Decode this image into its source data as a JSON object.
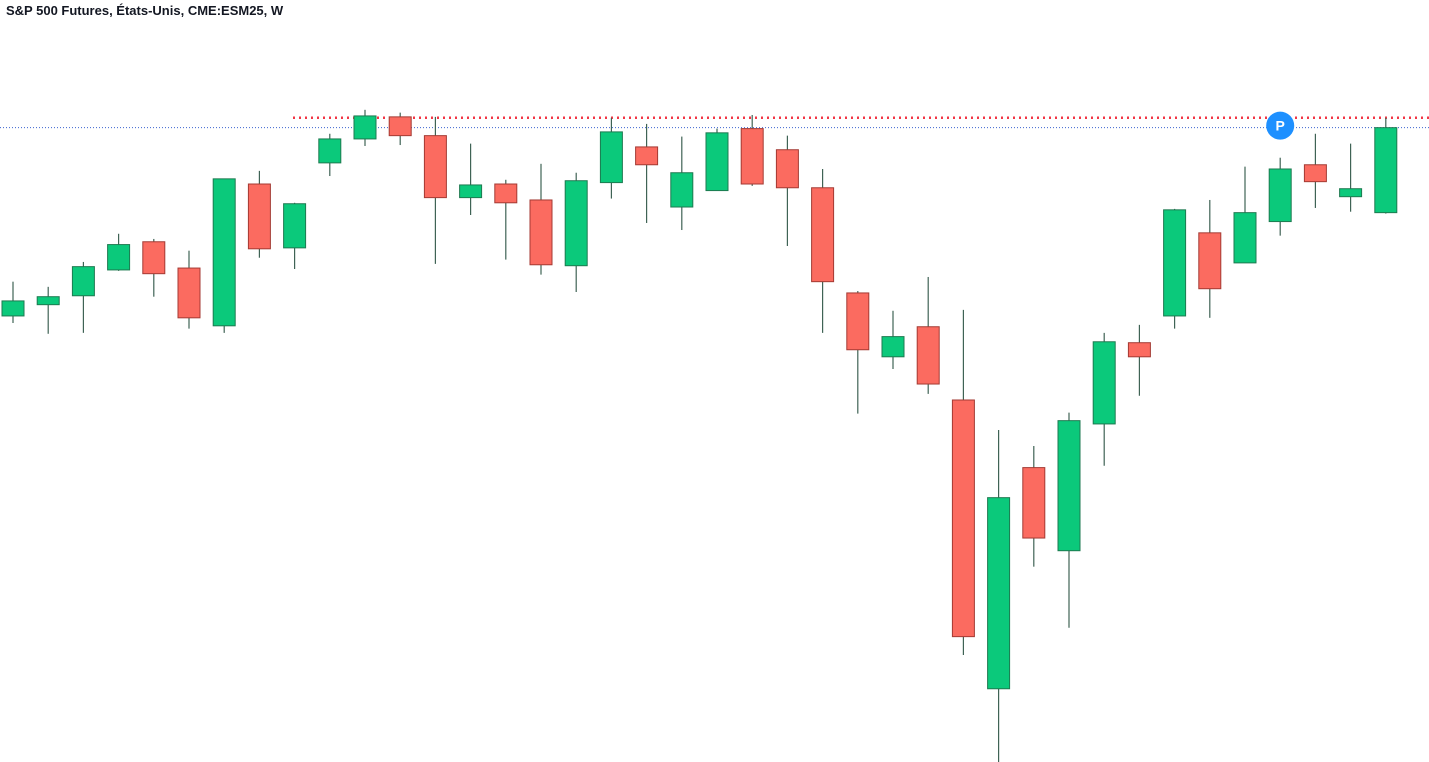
{
  "chart_data": {
    "type": "candlestick",
    "title": "S&P 500 Futures, États-Unis, CME:ESM25, W",
    "open": [
      5778,
      5802,
      5821,
      5876,
      5936,
      5880,
      5757,
      6059,
      5923,
      6104,
      6155,
      6202,
      6162,
      6030,
      6059,
      6025,
      5885,
      6062,
      6138,
      6010,
      6045,
      6177,
      6132,
      6051,
      5827,
      5691,
      5755,
      5599,
      4984,
      5455,
      5278,
      5548,
      5721,
      5778,
      5955,
      5891,
      5979,
      6100,
      6032,
      5998
    ],
    "high": [
      5851,
      5840,
      5893,
      5953,
      5942,
      5917,
      6070,
      6087,
      6019,
      6166,
      6217,
      6211,
      6202,
      6145,
      6068,
      6102,
      6083,
      6200,
      6187,
      6160,
      6177,
      6206,
      6162,
      6091,
      5831,
      5789,
      5861,
      5791,
      5535,
      5501,
      5572,
      5742,
      5759,
      6006,
      6025,
      6096,
      6115,
      6166,
      6145,
      6200
    ],
    "low": [
      5763,
      5740,
      5742,
      5874,
      5819,
      5751,
      5742,
      5902,
      5878,
      6076,
      6140,
      6142,
      5889,
      5993,
      5898,
      5866,
      5829,
      6028,
      5976,
      5961,
      6045,
      6055,
      5927,
      5742,
      5570,
      5665,
      5612,
      5056,
      4828,
      5244,
      5114,
      5459,
      5608,
      5751,
      5774,
      5891,
      5949,
      6008,
      6000,
      5996
    ],
    "close": [
      5810,
      5819,
      5883,
      5930,
      5868,
      5774,
      6070,
      5921,
      6017,
      6155,
      6204,
      6162,
      6030,
      6057,
      6019,
      5887,
      6066,
      6170,
      6100,
      6083,
      6168,
      6059,
      6051,
      5851,
      5706,
      5734,
      5633,
      5095,
      5391,
      5305,
      5555,
      5723,
      5691,
      6004,
      5836,
      5998,
      6091,
      6064,
      6049,
      6179
    ],
    "up_color": "#0bc97b",
    "down_color": "#fb6b60",
    "wick_color": "#3f6355",
    "ylim": [
      4828,
      6387
    ],
    "hlines": [
      {
        "value": 6200,
        "color": "#f23645",
        "style": "dotted"
      },
      {
        "value": 6179,
        "color": "#3b63d0",
        "style": "dotted-thin"
      }
    ],
    "annotations": [
      {
        "text": "P",
        "index": 36,
        "color": "#1e90ff"
      }
    ]
  }
}
